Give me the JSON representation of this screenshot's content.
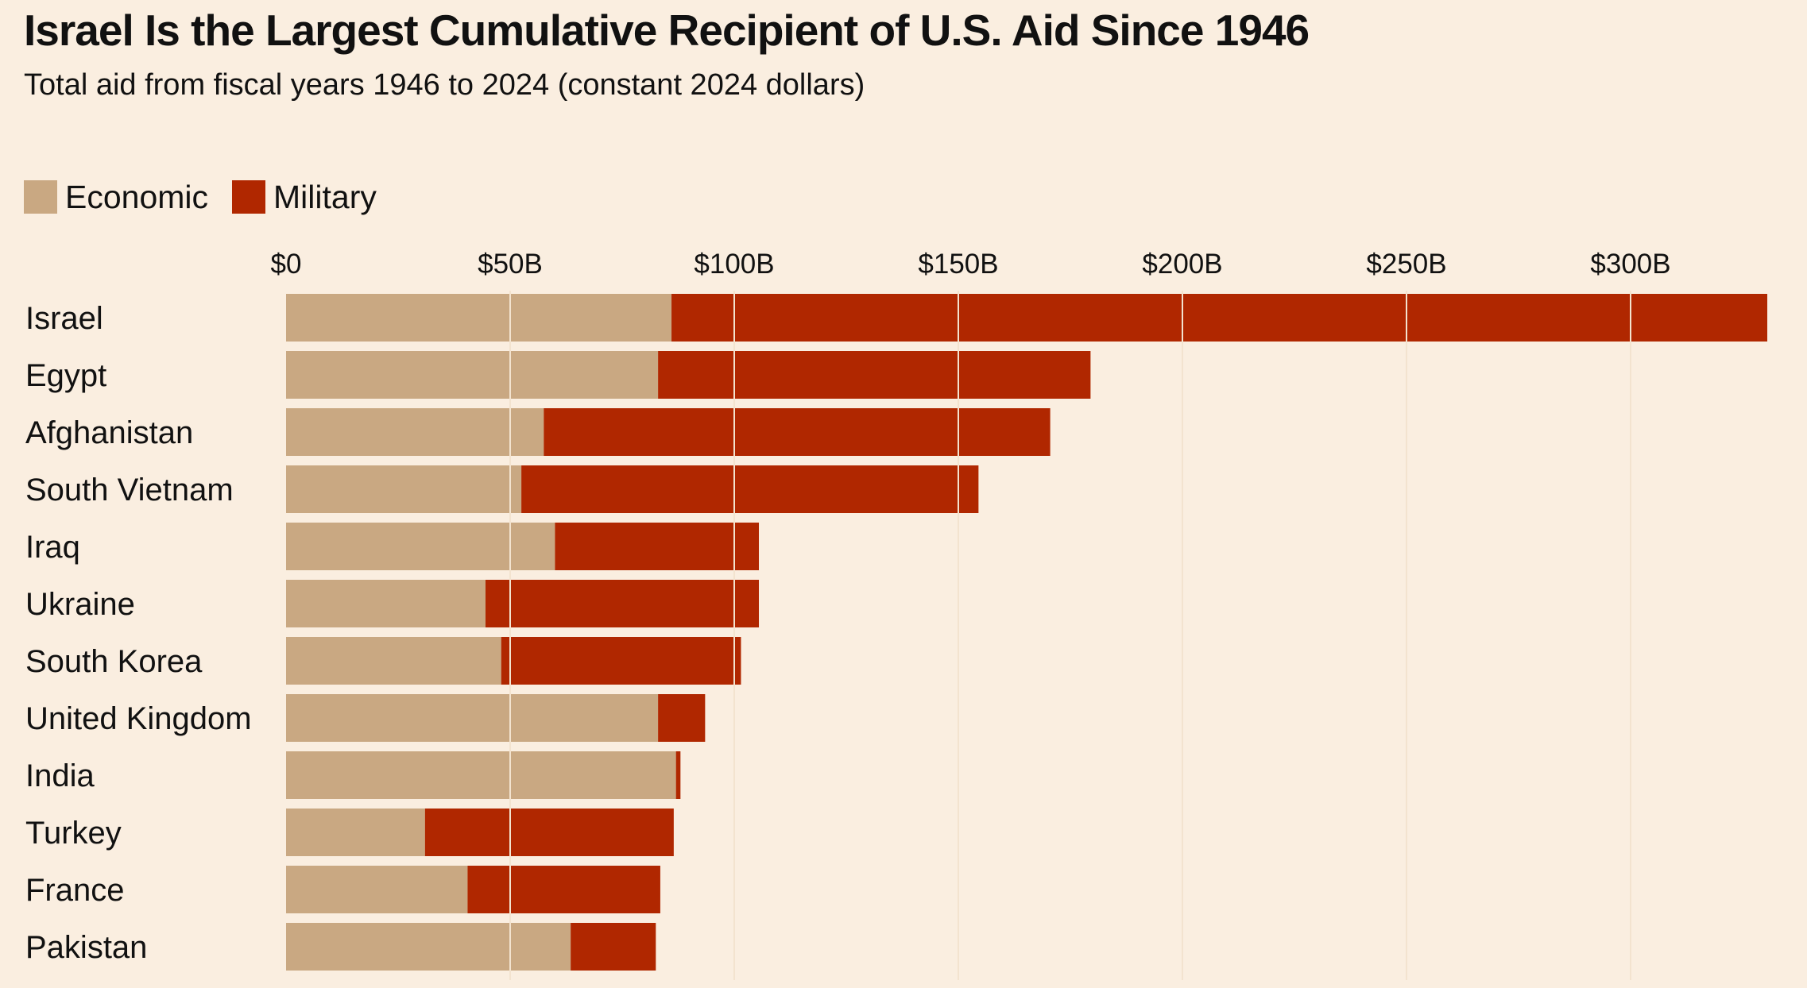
{
  "chart_data": {
    "type": "bar",
    "orientation": "horizontal",
    "stacked": true,
    "title": "Israel Is the Largest Cumulative Recipient of U.S. Aid Since 1946",
    "subtitle": "Total aid from fiscal years 1946 to 2024 (constant 2024 dollars)",
    "categories": [
      "Israel",
      "Egypt",
      "Afghanistan",
      "South Vietnam",
      "Iraq",
      "Ukraine",
      "South Korea",
      "United Kingdom",
      "India",
      "Turkey",
      "France",
      "Pakistan"
    ],
    "series": [
      {
        "name": "Economic",
        "color": "#c9a882",
        "values": [
          86,
          83,
          57.5,
          52.5,
          60,
          44.5,
          48,
          83,
          87,
          31,
          40.5,
          63.5
        ]
      },
      {
        "name": "Military",
        "color": "#b02700",
        "values": [
          244.5,
          96.5,
          113,
          102,
          45.5,
          61,
          53.5,
          10.5,
          1,
          55.5,
          43,
          19
        ]
      }
    ],
    "xlim": [
      0,
      330
    ],
    "xticks": [
      0,
      50,
      100,
      150,
      200,
      250,
      300
    ],
    "xtick_labels": [
      "$0",
      "$50B",
      "$100B",
      "$150B",
      "$200B",
      "$250B",
      "$300B"
    ],
    "xlabel": "",
    "ylabel": "",
    "grid": "vertical",
    "legend_position": "top-left",
    "background": "#faeee0",
    "gridline_color": "#f3e3cf"
  }
}
